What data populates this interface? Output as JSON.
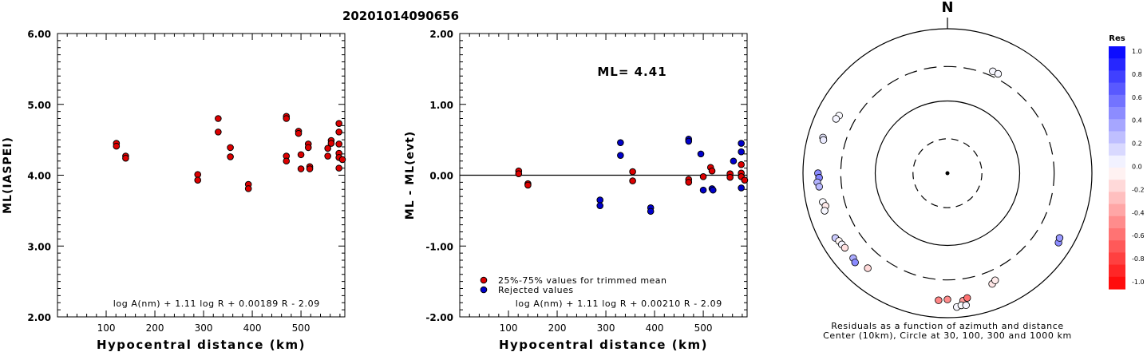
{
  "title": "20201014090656",
  "chart_data": [
    {
      "type": "scatter",
      "xlabel": "Hypocentral distance (km)",
      "ylabel": "ML(IASPEI)",
      "xlim": [
        0,
        590
      ],
      "ylim": [
        2.0,
        6.0
      ],
      "xticks": [
        "100",
        "200",
        "300",
        "400",
        "500"
      ],
      "yticks": [
        "2.00",
        "3.00",
        "4.00",
        "5.00",
        "6.00"
      ],
      "formula": "log A(nm) + 1.11 log R + 0.00189 R - 2.09",
      "series": [
        {
          "color": "#dd0000",
          "points": [
            [
              121,
              4.45
            ],
            [
              121,
              4.41
            ],
            [
              140,
              4.27
            ],
            [
              140,
              4.24
            ],
            [
              288,
              4.01
            ],
            [
              288,
              3.93
            ],
            [
              330,
              4.8
            ],
            [
              330,
              4.61
            ],
            [
              355,
              4.39
            ],
            [
              355,
              4.26
            ],
            [
              392,
              3.87
            ],
            [
              392,
              3.81
            ],
            [
              470,
              4.83
            ],
            [
              470,
              4.8
            ],
            [
              470,
              4.27
            ],
            [
              470,
              4.2
            ],
            [
              495,
              4.62
            ],
            [
              495,
              4.59
            ],
            [
              500,
              4.29
            ],
            [
              500,
              4.09
            ],
            [
              515,
              4.44
            ],
            [
              515,
              4.39
            ],
            [
              518,
              4.12
            ],
            [
              518,
              4.09
            ],
            [
              555,
              4.38
            ],
            [
              555,
              4.27
            ],
            [
              562,
              4.49
            ],
            [
              562,
              4.45
            ],
            [
              578,
              4.73
            ],
            [
              578,
              4.61
            ],
            [
              578,
              4.44
            ],
            [
              578,
              4.31
            ],
            [
              578,
              4.25
            ],
            [
              578,
              4.1
            ],
            [
              585,
              4.22
            ]
          ]
        }
      ]
    },
    {
      "type": "scatter",
      "xlabel": "Hypocentral distance (km)",
      "ylabel": "ML - ML(evt)",
      "xlim": [
        0,
        590
      ],
      "ylim": [
        -2.0,
        2.0
      ],
      "xticks": [
        "100",
        "200",
        "300",
        "400",
        "500"
      ],
      "yticks": [
        "-2.00",
        "-1.00",
        "0.00",
        "1.00",
        "2.00"
      ],
      "annotation": "ML= 4.41",
      "formula": "log A(nm) + 1.11 log R + 0.00210 R - 2.09",
      "legend": {
        "position": "bottom-left",
        "entries": [
          "25%-75% values for trimmed mean",
          "Rejected values"
        ]
      },
      "series": [
        {
          "name": "25%-75% values for trimmed mean",
          "color": "#dd0000",
          "points": [
            [
              121,
              0.06
            ],
            [
              121,
              0.02
            ],
            [
              140,
              -0.12
            ],
            [
              140,
              -0.14
            ],
            [
              355,
              0.05
            ],
            [
              355,
              -0.08
            ],
            [
              470,
              -0.06
            ],
            [
              470,
              -0.1
            ],
            [
              500,
              -0.02
            ],
            [
              515,
              0.11
            ],
            [
              518,
              0.06
            ],
            [
              555,
              0.02
            ],
            [
              555,
              -0.03
            ],
            [
              578,
              0.15
            ],
            [
              578,
              0.03
            ],
            [
              578,
              -0.02
            ],
            [
              585,
              -0.07
            ]
          ]
        },
        {
          "name": "Rejected values",
          "color": "#0000cc",
          "points": [
            [
              288,
              -0.35
            ],
            [
              288,
              -0.43
            ],
            [
              330,
              0.46
            ],
            [
              330,
              0.28
            ],
            [
              392,
              -0.46
            ],
            [
              392,
              -0.51
            ],
            [
              470,
              0.51
            ],
            [
              470,
              0.48
            ],
            [
              495,
              0.3
            ],
            [
              500,
              -0.21
            ],
            [
              518,
              -0.19
            ],
            [
              520,
              -0.21
            ],
            [
              562,
              0.2
            ],
            [
              578,
              0.45
            ],
            [
              578,
              0.33
            ],
            [
              578,
              -0.18
            ]
          ]
        }
      ]
    }
  ],
  "polar": {
    "north_label": "N",
    "caption_line1": "Residuals as a function of azimuth and distance",
    "caption_line2": "Center (10km), Circle at 30, 100, 300 and 1000 km",
    "points": [
      {
        "az": 24,
        "dist": 350,
        "res": 0.03
      },
      {
        "az": 27,
        "dist": 350,
        "res": 0.03
      },
      {
        "az": 298,
        "dist": 500,
        "res": 0.02
      },
      {
        "az": 296,
        "dist": 520,
        "res": 0.04
      },
      {
        "az": 286,
        "dist": 620,
        "res": 0.1
      },
      {
        "az": 285,
        "dist": 600,
        "res": 0.08
      },
      {
        "az": 270,
        "dist": 620,
        "res": 0.45
      },
      {
        "az": 268,
        "dist": 600,
        "res": 0.48
      },
      {
        "az": 266,
        "dist": 640,
        "res": 0.3
      },
      {
        "az": 264,
        "dist": 610,
        "res": 0.28
      },
      {
        "az": 257,
        "dist": 590,
        "res": 0.02
      },
      {
        "az": 255,
        "dist": 560,
        "res": -0.08
      },
      {
        "az": 253,
        "dist": 600,
        "res": 0.03
      },
      {
        "az": 240,
        "dist": 620,
        "res": 0.2
      },
      {
        "az": 238,
        "dist": 590,
        "res": -0.03
      },
      {
        "az": 236,
        "dist": 580,
        "res": 0.04
      },
      {
        "az": 234,
        "dist": 570,
        "res": -0.12
      },
      {
        "az": 228,
        "dist": 570,
        "res": 0.33
      },
      {
        "az": 226,
        "dist": 600,
        "res": 0.46
      },
      {
        "az": 220,
        "dist": 520,
        "res": -0.15
      },
      {
        "az": 184,
        "dist": 580,
        "res": -0.48
      },
      {
        "az": 180,
        "dist": 560,
        "res": -0.45
      },
      {
        "az": 173,
        "dist": 600,
        "res": -0.4
      },
      {
        "az": 171,
        "dist": 560,
        "res": -0.55
      },
      {
        "az": 176,
        "dist": 720,
        "res": 0.03
      },
      {
        "az": 174,
        "dist": 690,
        "res": 0.02
      },
      {
        "az": 172,
        "dist": 700,
        "res": 0.04
      },
      {
        "az": 158,
        "dist": 450,
        "res": -0.1
      },
      {
        "az": 156,
        "dist": 420,
        "res": -0.08
      },
      {
        "az": 122,
        "dist": 650,
        "res": 0.45
      },
      {
        "az": 120,
        "dist": 620,
        "res": 0.4
      }
    ]
  },
  "colorbar": {
    "title": "Res",
    "labels": [
      "1.0",
      "0.8",
      "0.6",
      "0.4",
      "0.2",
      "0.0",
      "-0.2",
      "-0.4",
      "-0.6",
      "-0.8",
      "-1.0"
    ],
    "positive_color": "#0000ff",
    "negative_color": "#ff0000"
  }
}
